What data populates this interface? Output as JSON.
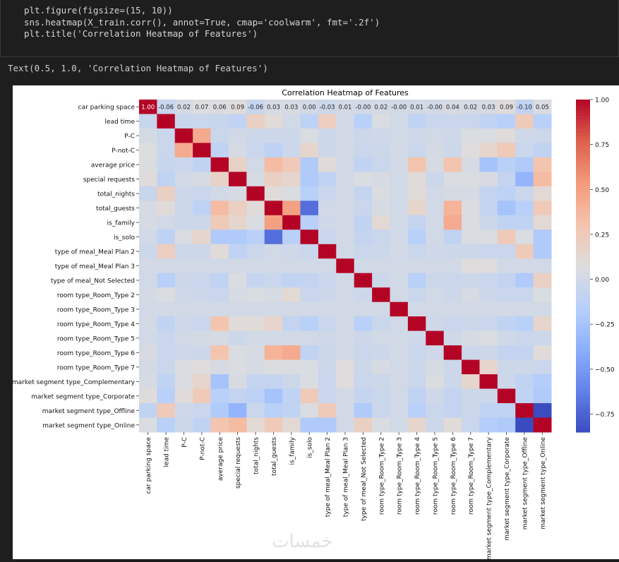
{
  "code_cell": {
    "lines": [
      "plt.figure(figsize=(15, 10))",
      "sns.heatmap(X_train.corr(), annot=True, cmap='coolwarm', fmt='.2f')",
      "plt.title('Correlation Heatmap of Features')"
    ]
  },
  "output_text": "Text(0.5, 1.0, 'Correlation Heatmap of Features')",
  "watermark": "خمسات",
  "chart_data": {
    "type": "heatmap",
    "title": "Correlation Heatmap of Features",
    "cmap": "coolwarm",
    "vmin": -0.85,
    "vmax": 1.0,
    "colorbar_ticks": [
      1.0,
      0.75,
      0.5,
      0.25,
      0.0,
      -0.25,
      -0.5,
      -0.75
    ],
    "colorbar_tick_labels": [
      "1.00",
      "0.75",
      "0.50",
      "0.25",
      "0.00",
      "−0.25",
      "−0.50",
      "−0.75"
    ],
    "labels": [
      "car parking space",
      "lead time",
      "P-C",
      "P-not-C",
      "average price ",
      "special requests",
      "total_nights",
      "total_guests",
      "is_family",
      "is_solo",
      "type of meal_Meal Plan 2",
      "type of meal_Meal Plan 3",
      "type of meal_Not Selected",
      "room type_Room_Type 2",
      "room type_Room_Type 3",
      "room type_Room_Type 4",
      "room type_Room_Type 5",
      "room type_Room_Type 6",
      "room type_Room_Type 7",
      "market segment type_Complementary",
      "market segment type_Corporate",
      "market segment type_Offline",
      "market segment type_Online"
    ],
    "annotated_row": [
      "1.00",
      "-0.06",
      "0.02",
      "0.07",
      "0.06",
      "0.09",
      "-0.06",
      "0.03",
      "0.03",
      "0.00",
      "-0.03",
      "0.01",
      "-0.00",
      "0.02",
      "-0.00",
      "0.01",
      "-0.00",
      "0.04",
      "0.02",
      "0.03",
      "0.09",
      "-0.10",
      "0.05"
    ],
    "upper_triangle": [
      [
        1.0,
        -0.06,
        0.02,
        0.07,
        0.06,
        0.09,
        -0.06,
        0.03,
        0.03,
        0.0,
        -0.03,
        0.01,
        -0.0,
        0.02,
        -0.0,
        0.01,
        -0.0,
        0.04,
        0.02,
        0.03,
        0.09,
        -0.1,
        0.05
      ],
      [
        1.0,
        -0.05,
        -0.05,
        -0.06,
        -0.1,
        0.2,
        0.1,
        0.0,
        -0.12,
        0.22,
        0.0,
        -0.15,
        0.05,
        0.0,
        -0.1,
        -0.05,
        -0.05,
        -0.05,
        -0.1,
        -0.15,
        0.25,
        -0.15
      ],
      [
        1.0,
        0.45,
        -0.05,
        0.0,
        -0.03,
        -0.03,
        -0.03,
        0.05,
        -0.03,
        0.0,
        -0.03,
        -0.02,
        0.0,
        -0.02,
        0.0,
        -0.02,
        0.05,
        0.05,
        0.1,
        -0.02,
        -0.03
      ],
      [
        1.0,
        -0.1,
        0.03,
        -0.05,
        -0.12,
        -0.03,
        0.15,
        -0.03,
        0.0,
        -0.05,
        -0.03,
        0.0,
        -0.05,
        0.02,
        -0.03,
        0.08,
        0.15,
        0.25,
        -0.05,
        -0.1
      ],
      [
        1.0,
        0.18,
        0.0,
        0.35,
        0.25,
        -0.2,
        0.1,
        0.0,
        -0.1,
        -0.05,
        0.0,
        0.3,
        0.03,
        0.3,
        0.03,
        -0.25,
        -0.15,
        -0.2,
        0.3
      ],
      [
        1.0,
        0.03,
        0.2,
        0.15,
        -0.2,
        -0.1,
        0.0,
        0.05,
        0.03,
        0.0,
        0.1,
        -0.03,
        0.05,
        0.05,
        0.04,
        -0.08,
        -0.35,
        0.35
      ],
      [
        1.0,
        0.1,
        0.05,
        -0.15,
        -0.05,
        0.0,
        -0.07,
        0.05,
        0.0,
        0.1,
        0.0,
        0.03,
        0.03,
        -0.08,
        -0.12,
        -0.05,
        0.12
      ],
      [
        1.0,
        0.5,
        -0.7,
        0.0,
        0.0,
        -0.05,
        0.03,
        0.0,
        0.15,
        0.0,
        0.4,
        0.06,
        -0.08,
        -0.25,
        -0.15,
        0.25
      ],
      [
        1.0,
        -0.15,
        -0.02,
        0.0,
        -0.1,
        0.12,
        0.0,
        -0.08,
        0.0,
        0.45,
        0.05,
        -0.03,
        -0.1,
        -0.1,
        0.12
      ],
      [
        1.0,
        -0.05,
        0.0,
        -0.08,
        -0.05,
        0.0,
        -0.15,
        0.0,
        -0.1,
        0.05,
        0.05,
        0.25,
        0.05,
        -0.2
      ],
      [
        1.0,
        0.0,
        -0.05,
        -0.03,
        0.0,
        -0.05,
        -0.02,
        -0.03,
        -0.03,
        -0.05,
        -0.05,
        0.25,
        -0.2
      ],
      [
        1.0,
        0.0,
        0.0,
        0.0,
        0.0,
        0.0,
        0.0,
        0.08,
        0.08,
        0.0,
        0.0,
        0.0
      ],
      [
        1.0,
        -0.03,
        0.0,
        -0.15,
        -0.03,
        -0.05,
        -0.03,
        -0.05,
        -0.08,
        -0.2,
        0.2
      ],
      [
        1.0,
        0.0,
        -0.05,
        0.0,
        -0.03,
        0.03,
        -0.03,
        -0.05,
        -0.05,
        0.05
      ],
      [
        1.0,
        0.0,
        0.0,
        0.0,
        0.0,
        0.0,
        0.0,
        0.0,
        0.0
      ],
      [
        1.0,
        -0.02,
        -0.05,
        -0.03,
        -0.05,
        -0.1,
        -0.15,
        0.15
      ],
      [
        1.0,
        -0.02,
        0.03,
        0.05,
        -0.02,
        -0.05,
        -0.03
      ],
      [
        1.0,
        -0.03,
        -0.03,
        -0.08,
        -0.08,
        0.1
      ],
      [
        1.0,
        0.15,
        -0.03,
        -0.03,
        -0.05
      ],
      [
        1.0,
        -0.03,
        -0.1,
        -0.18
      ],
      [
        1.0,
        -0.1,
        -0.2
      ],
      [
        1.0,
        -0.85
      ],
      [
        1.0
      ]
    ]
  }
}
